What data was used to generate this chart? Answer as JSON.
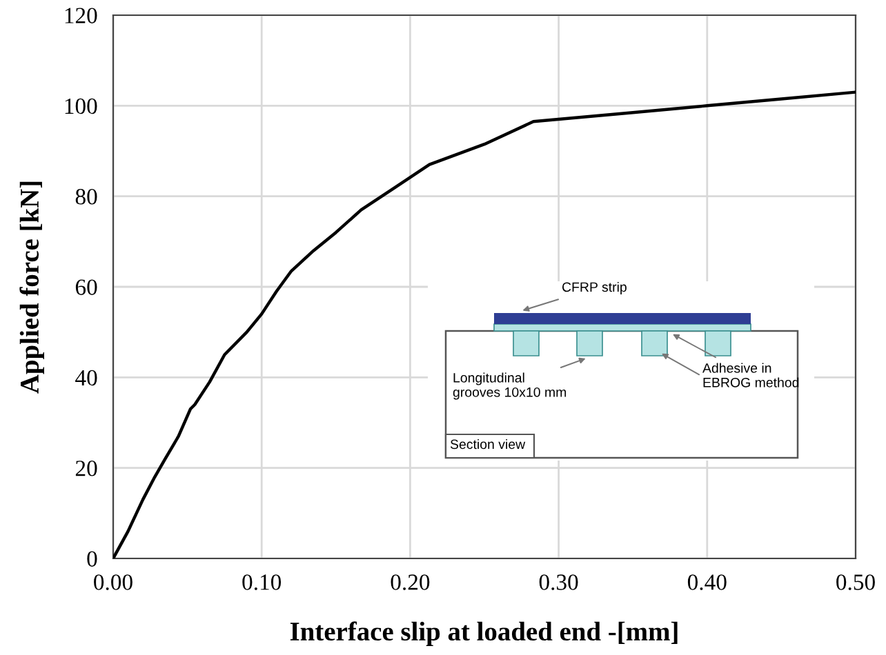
{
  "chart_data": {
    "type": "line",
    "xlabel": "Interface slip at loaded end -[mm]",
    "ylabel": "Applied force [kN]",
    "x": [
      0,
      0.01,
      0.02,
      0.028,
      0.035,
      0.044,
      0.052,
      0.055,
      0.065,
      0.075,
      0.09,
      0.1,
      0.11,
      0.12,
      0.135,
      0.15,
      0.167,
      0.19,
      0.213,
      0.25,
      0.283,
      0.35,
      0.4,
      0.45,
      0.5
    ],
    "series": [
      {
        "color": "#000000",
        "values": [
          0,
          6,
          13,
          18,
          22,
          27,
          33,
          34,
          39,
          45,
          50,
          54,
          59,
          63.5,
          68,
          72,
          77,
          82,
          87,
          91.5,
          96.5,
          98.5,
          100,
          101.5,
          103
        ]
      }
    ],
    "xlim": [
      0,
      0.5
    ],
    "ylim": [
      0,
      120
    ],
    "xticks": [
      {
        "value": 0,
        "label": "0.00"
      },
      {
        "value": 0.1,
        "label": "0.10"
      },
      {
        "value": 0.2,
        "label": "0.20"
      },
      {
        "value": 0.3,
        "label": "0.30"
      },
      {
        "value": 0.4,
        "label": "0.40"
      },
      {
        "value": 0.5,
        "label": "0.50"
      }
    ],
    "yticks": [
      0,
      20,
      40,
      60,
      80,
      100,
      120
    ],
    "grid": true,
    "marker": "none",
    "line_style": "solid",
    "annotations": [
      "CFRP strip",
      "Longitudinal\ngrooves 10x10 mm",
      "Adhesive in\nEBROG method",
      "Section view"
    ]
  }
}
